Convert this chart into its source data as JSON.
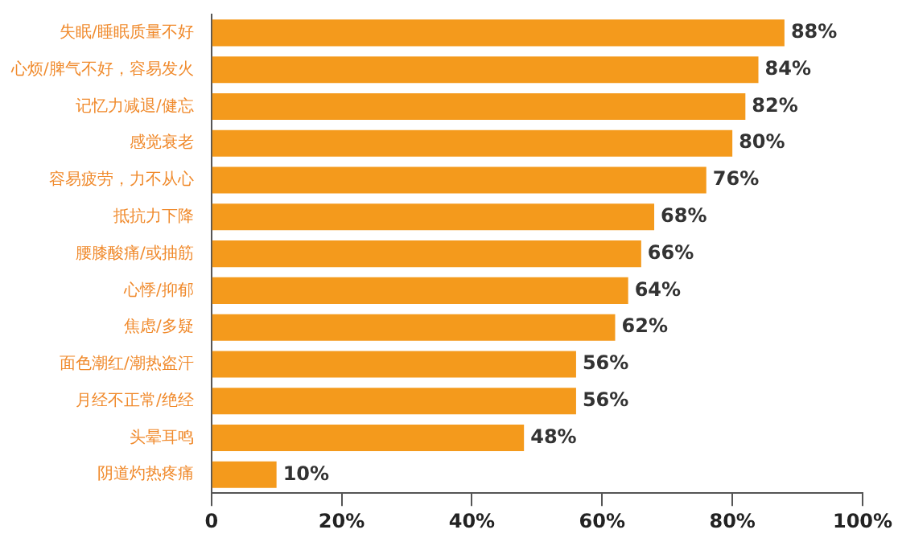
{
  "chart_data": {
    "type": "bar",
    "orientation": "horizontal",
    "categories": [
      "失眠/睡眠质量不好",
      "心烦/脾气不好，容易发火",
      "记忆力减退/健忘",
      "感觉衰老",
      "容易疲劳，力不从心",
      "抵抗力下降",
      "腰膝酸痛/或抽筋",
      "心悸/抑郁",
      "焦虑/多疑",
      "面色潮红/潮热盗汗",
      "月经不正常/绝经",
      "头晕耳鸣",
      "阴道灼热疼痛"
    ],
    "values": [
      88,
      84,
      82,
      80,
      76,
      68,
      66,
      64,
      62,
      56,
      56,
      48,
      10
    ],
    "value_labels": [
      "88%",
      "84%",
      "82%",
      "80%",
      "76%",
      "68%",
      "66%",
      "64%",
      "62%",
      "56%",
      "56%",
      "48%",
      "10%"
    ],
    "color": "#f49a1c",
    "xlim": [
      0,
      100
    ],
    "xticks": [
      {
        "value": 0,
        "label": "0"
      },
      {
        "value": 20,
        "label": "20%"
      },
      {
        "value": 40,
        "label": "40%"
      },
      {
        "value": 60,
        "label": "60%"
      },
      {
        "value": 80,
        "label": "80%"
      },
      {
        "value": 100,
        "label": "100%"
      }
    ],
    "grid": false,
    "legend": false
  }
}
